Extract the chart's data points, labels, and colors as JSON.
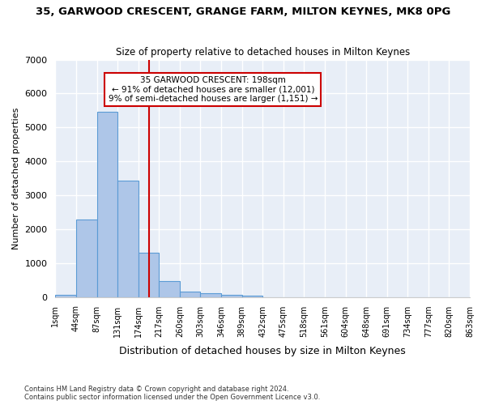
{
  "title": "35, GARWOOD CRESCENT, GRANGE FARM, MILTON KEYNES, MK8 0PG",
  "subtitle": "Size of property relative to detached houses in Milton Keynes",
  "xlabel": "Distribution of detached houses by size in Milton Keynes",
  "ylabel": "Number of detached properties",
  "footnote1": "Contains HM Land Registry data © Crown copyright and database right 2024.",
  "footnote2": "Contains public sector information licensed under the Open Government Licence v3.0.",
  "bin_labels": [
    "1sqm",
    "44sqm",
    "87sqm",
    "131sqm",
    "174sqm",
    "217sqm",
    "260sqm",
    "303sqm",
    "346sqm",
    "389sqm",
    "432sqm",
    "475sqm",
    "518sqm",
    "561sqm",
    "604sqm",
    "648sqm",
    "691sqm",
    "734sqm",
    "777sqm",
    "820sqm",
    "863sqm"
  ],
  "bar_values": [
    75,
    2280,
    5460,
    3430,
    1310,
    460,
    160,
    100,
    65,
    40,
    0,
    0,
    0,
    0,
    0,
    0,
    0,
    0,
    0,
    0
  ],
  "bar_color": "#aec6e8",
  "bar_edge_color": "#5b9bd5",
  "background_color": "#e8eef7",
  "grid_color": "#ffffff",
  "red_line_x": 4.5,
  "annotation_text": "35 GARWOOD CRESCENT: 198sqm\n← 91% of detached houses are smaller (12,001)\n9% of semi-detached houses are larger (1,151) →",
  "annotation_box_color": "#cc0000",
  "ylim": [
    0,
    7000
  ],
  "yticks": [
    0,
    1000,
    2000,
    3000,
    4000,
    5000,
    6000,
    7000
  ]
}
